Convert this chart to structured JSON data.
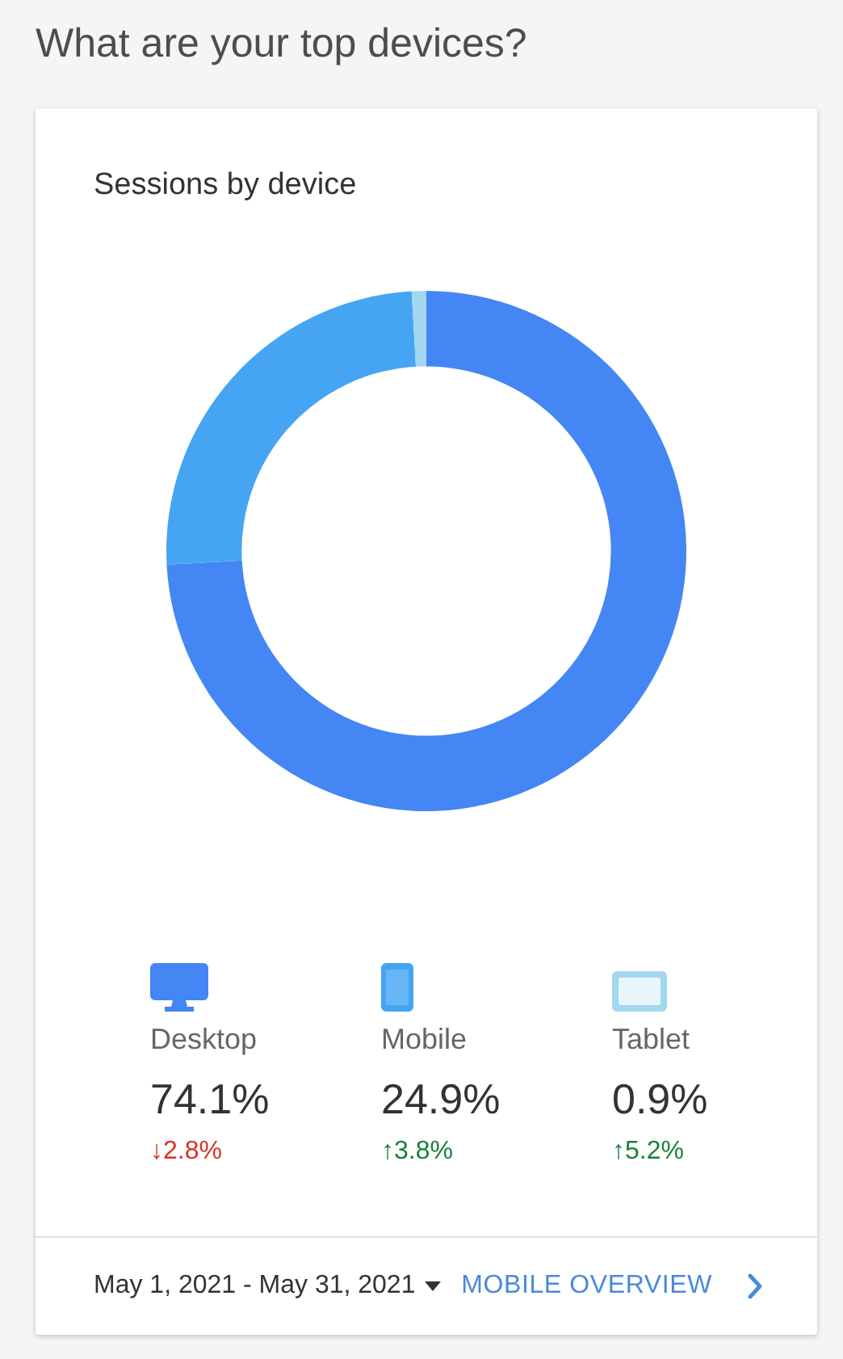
{
  "chart_data": {
    "type": "donut",
    "title": "What are your top devices?",
    "subtitle": "Sessions by device",
    "categories": [
      "Desktop",
      "Mobile",
      "Tablet"
    ],
    "values": [
      74.1,
      24.9,
      0.9
    ],
    "colors": [
      "#4486f4",
      "#45a5f3",
      "#a3d6f0"
    ],
    "value_labels": [
      "74.1%",
      "24.9%",
      "0.9%"
    ],
    "legend": "bottom",
    "annotations": [
      "↓2.8%",
      "↑3.8%",
      "↑5.2%",
      "May 1, 2021 - May 31, 2021",
      "MOBILE OVERVIEW"
    ]
  }
}
